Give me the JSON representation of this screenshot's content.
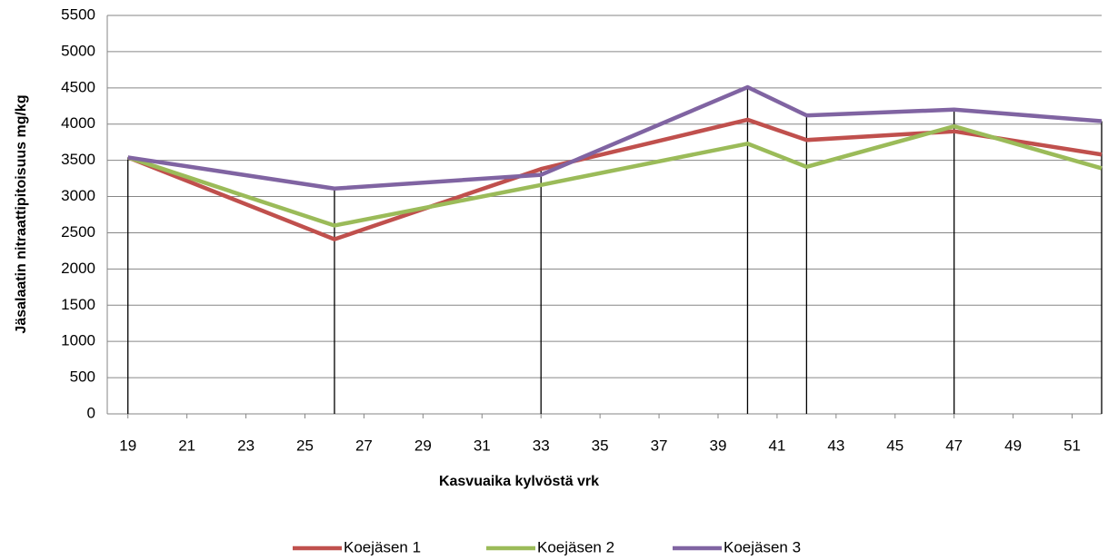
{
  "chart_data": {
    "type": "line",
    "x_label": "Kasvuaika kylvöstä vrk",
    "y_label": "Jäsalaatin nitraattipitoisuus mg/kg",
    "x": [
      19,
      26,
      33,
      40,
      42,
      47,
      52
    ],
    "series": [
      {
        "name": "Koejäsen 1",
        "color": "#c0504d",
        "values": [
          3540,
          2410,
          3380,
          4060,
          3780,
          3900,
          3580
        ]
      },
      {
        "name": "Koejäsen 2",
        "color": "#9bbb59",
        "values": [
          3540,
          2600,
          3160,
          3730,
          3410,
          3970,
          3390
        ]
      },
      {
        "name": "Koejäsen 3",
        "color": "#8064a2",
        "values": [
          3540,
          3110,
          3300,
          4510,
          4120,
          4200,
          4040
        ]
      }
    ],
    "xlim": [
      18.3,
      52
    ],
    "xticks": [
      19,
      21,
      23,
      25,
      27,
      29,
      31,
      33,
      35,
      37,
      39,
      41,
      43,
      45,
      47,
      49,
      51
    ],
    "ylim": [
      0,
      5500
    ],
    "yticks": [
      0,
      500,
      1000,
      1500,
      2000,
      2500,
      3000,
      3500,
      4000,
      4500,
      5000,
      5500
    ],
    "grid": true,
    "drop_lines": true,
    "legend": "bottom"
  }
}
